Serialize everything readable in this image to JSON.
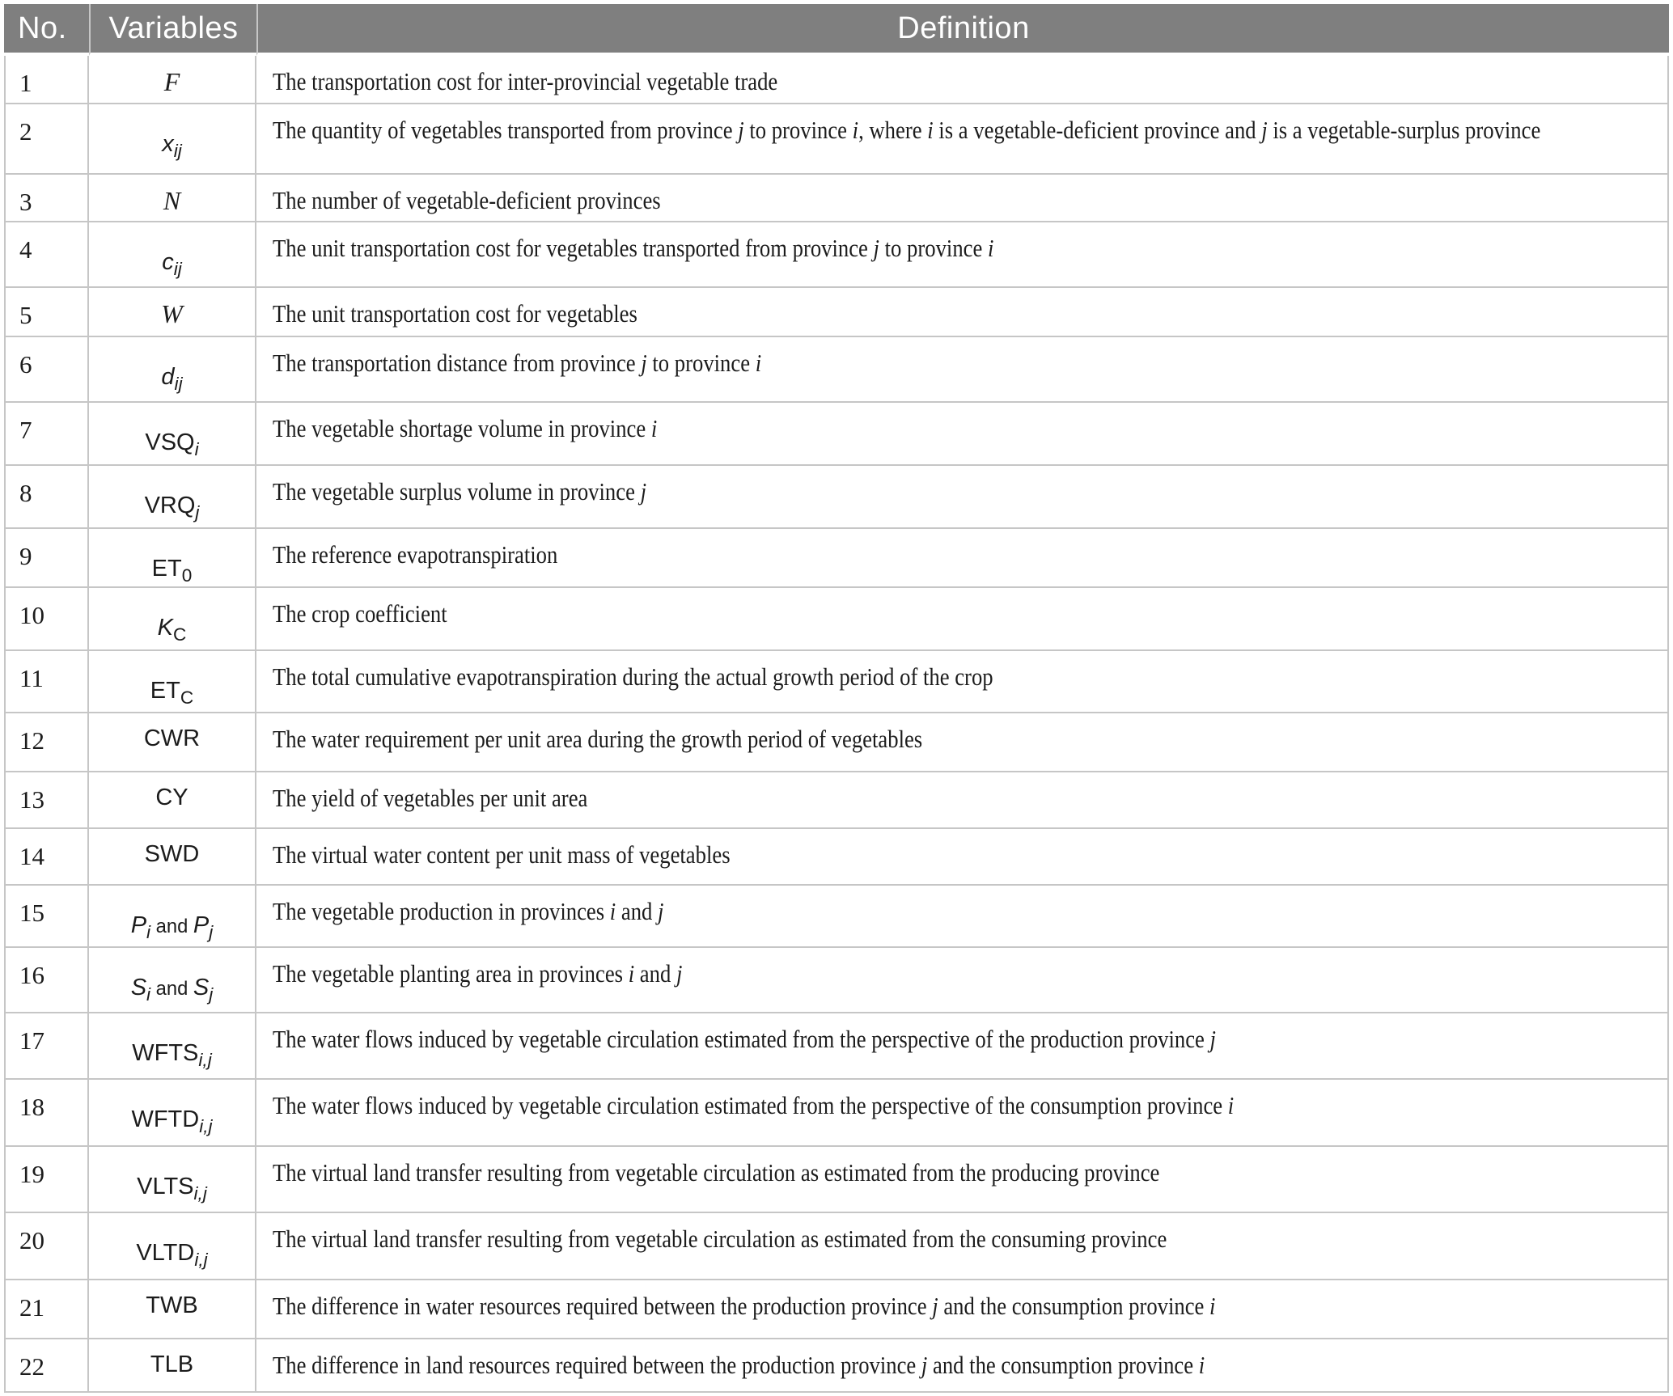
{
  "colors": {
    "header_bg": "#7f7f7f",
    "header_text": "#ffffff",
    "border": "#c6c6c6",
    "body_text": "#1c1c1c"
  },
  "table": {
    "columns": [
      {
        "label": "No."
      },
      {
        "label": "Variables"
      },
      {
        "label": "Definition"
      }
    ],
    "rows": [
      {
        "no": "1",
        "variable": [
          {
            "t": "F",
            "i": true,
            "serif": true
          }
        ],
        "definition": "The transportation cost for inter-provincial vegetable trade"
      },
      {
        "no": "2",
        "variable": [
          {
            "t": "x",
            "i": true
          },
          {
            "t": "ij",
            "sub": true,
            "i": true
          }
        ],
        "definition": "The quantity of vegetables transported from province {j} to province {i}, where {i} is a vegetable-deficient province and {j} is a vegetable-surplus province"
      },
      {
        "no": "3",
        "variable": [
          {
            "t": "N",
            "i": true,
            "serif": true
          }
        ],
        "definition": "The number of vegetable-deficient provinces"
      },
      {
        "no": "4",
        "variable": [
          {
            "t": "c",
            "i": true
          },
          {
            "t": "ij",
            "sub": true,
            "i": true
          }
        ],
        "definition": "The unit transportation cost for vegetables transported from province {j} to province {i}"
      },
      {
        "no": "5",
        "variable": [
          {
            "t": "W",
            "i": true,
            "serif": true
          }
        ],
        "definition": "The unit transportation cost for vegetables"
      },
      {
        "no": "6",
        "variable": [
          {
            "t": "d",
            "i": true
          },
          {
            "t": "ij",
            "sub": true,
            "i": true
          }
        ],
        "definition": "The transportation distance from province {j} to province {i}"
      },
      {
        "no": "7",
        "variable": [
          {
            "t": "VSQ"
          },
          {
            "t": "i",
            "sub": true,
            "i": true
          }
        ],
        "definition": "The vegetable shortage volume in province {i}"
      },
      {
        "no": "8",
        "variable": [
          {
            "t": "VRQ"
          },
          {
            "t": "j",
            "sub": true,
            "i": true
          }
        ],
        "definition": "The vegetable surplus volume in province {j}"
      },
      {
        "no": "9",
        "variable": [
          {
            "t": "ET"
          },
          {
            "t": "0",
            "sub": true
          }
        ],
        "definition": "The reference evapotranspiration"
      },
      {
        "no": "10",
        "variable": [
          {
            "t": "K",
            "i": true
          },
          {
            "t": "C",
            "sub": true
          }
        ],
        "definition": "The crop coefficient"
      },
      {
        "no": "11",
        "variable": [
          {
            "t": "ET"
          },
          {
            "t": "C",
            "sub": true
          }
        ],
        "definition": "The total cumulative evapotranspiration during the actual growth period of the crop"
      },
      {
        "no": "12",
        "variable": [
          {
            "t": "CWR"
          }
        ],
        "definition": "The water requirement per unit area during the growth period of vegetables"
      },
      {
        "no": "13",
        "variable": [
          {
            "t": "CY"
          }
        ],
        "definition": "The yield of vegetables per unit area"
      },
      {
        "no": "14",
        "variable": [
          {
            "t": "SWD"
          }
        ],
        "definition": "The virtual water content per unit mass of vegetables"
      },
      {
        "no": "15",
        "variable": [
          {
            "t": "P",
            "i": true
          },
          {
            "t": "i",
            "sub": true,
            "i": true
          },
          {
            "t": " and ",
            "small": true
          },
          {
            "t": "P",
            "i": true
          },
          {
            "t": "j",
            "sub": true,
            "i": true
          }
        ],
        "definition": "The vegetable production in provinces {i} and {j}"
      },
      {
        "no": "16",
        "variable": [
          {
            "t": "S",
            "i": true
          },
          {
            "t": "i",
            "sub": true,
            "i": true
          },
          {
            "t": " and ",
            "small": true
          },
          {
            "t": "S",
            "i": true
          },
          {
            "t": "j",
            "sub": true,
            "i": true
          }
        ],
        "definition": "The vegetable planting area in provinces {i} and {j}"
      },
      {
        "no": "17",
        "variable": [
          {
            "t": "WFTS"
          },
          {
            "t": "i,j",
            "sub": true,
            "i": true
          }
        ],
        "definition": "The water flows induced by vegetable circulation estimated from the perspective of the production province {j}"
      },
      {
        "no": "18",
        "variable": [
          {
            "t": "WFTD"
          },
          {
            "t": "i,j",
            "sub": true,
            "i": true
          }
        ],
        "definition": "The water flows induced by vegetable circulation estimated from the perspective of the consumption province {i}"
      },
      {
        "no": "19",
        "variable": [
          {
            "t": "VLTS"
          },
          {
            "t": "i,j",
            "sub": true,
            "i": true
          }
        ],
        "definition": "The virtual land transfer resulting from vegetable circulation as estimated from the producing province"
      },
      {
        "no": "20",
        "variable": [
          {
            "t": "VLTD"
          },
          {
            "t": "i,j",
            "sub": true,
            "i": true
          }
        ],
        "definition": "The virtual land transfer resulting from vegetable circulation as estimated from the consuming province"
      },
      {
        "no": "21",
        "variable": [
          {
            "t": "TWB"
          }
        ],
        "definition": "The difference in water resources required between the production province {j} and the consumption province {i}"
      },
      {
        "no": "22",
        "variable": [
          {
            "t": "TLB"
          }
        ],
        "definition": "The difference in land resources required between the production province {j} and the consumption province {i}"
      }
    ]
  }
}
